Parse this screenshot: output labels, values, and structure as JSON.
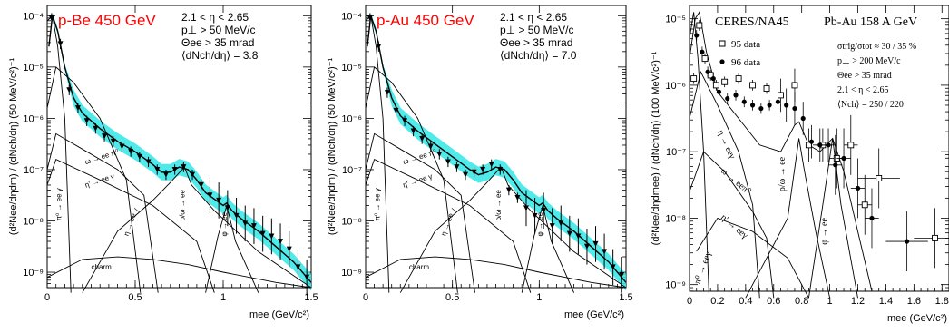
{
  "chart_data": [
    {
      "type": "line",
      "panel": "p-Be",
      "title": "p-Be 450 GeV",
      "info": [
        "2.1 < η < 2.65",
        "p⊥ > 50 MeV/c",
        "Θee > 35 mrad",
        "⟨dNch/dη⟩ = 3.8"
      ],
      "xlabel": "mee (GeV/c²)",
      "ylabel": "(d²Nee/dηdm) / (dNch/dη) (50 MeV/c²)⁻¹",
      "xlim": [
        0,
        1.5
      ],
      "ylim_log10": [
        -9.3,
        -3.8
      ],
      "xticks": [
        "0",
        "0.5",
        "1",
        "1.5"
      ],
      "yticks": [
        "10⁻⁴",
        "10⁻⁵",
        "10⁻⁶",
        "10⁻⁷",
        "10⁻⁸",
        "10⁻⁹"
      ],
      "annotations": [
        "ω → ee π⁰",
        "η' → ee γ",
        "π⁰ → ee γ",
        "η → ee γ",
        "ρ/ω → ee",
        "φ → ee",
        "charm"
      ],
      "data": {
        "x": [
          0.025,
          0.075,
          0.125,
          0.175,
          0.225,
          0.275,
          0.325,
          0.375,
          0.425,
          0.475,
          0.525,
          0.575,
          0.625,
          0.675,
          0.725,
          0.775,
          0.825,
          0.875,
          0.925,
          0.975,
          1.025,
          1.075,
          1.125,
          1.175,
          1.225,
          1.275,
          1.325,
          1.375,
          1.425,
          1.475
        ],
        "y_log10": [
          -4.05,
          -4.55,
          -5.45,
          -5.8,
          -6.05,
          -6.2,
          -6.35,
          -6.45,
          -6.55,
          -6.65,
          -6.75,
          -6.85,
          -7.0,
          -7.1,
          -7.0,
          -6.95,
          -7.1,
          -7.3,
          -7.5,
          -7.6,
          -7.75,
          -7.9,
          -8.05,
          -8.1,
          -8.25,
          -8.3,
          -8.4,
          -8.55,
          -8.9,
          -9.1
        ]
      },
      "sum_curve": {
        "x": [
          0.01,
          0.03,
          0.06,
          0.1,
          0.15,
          0.2,
          0.3,
          0.4,
          0.5,
          0.6,
          0.65,
          0.7,
          0.75,
          0.8,
          0.85,
          0.9,
          1.0,
          1.02,
          1.05,
          1.1,
          1.2,
          1.3,
          1.4,
          1.5
        ],
        "y_log10": [
          -4.6,
          -4.0,
          -4.3,
          -5.0,
          -5.6,
          -5.9,
          -6.2,
          -6.45,
          -6.65,
          -6.9,
          -7.05,
          -7.05,
          -6.95,
          -7.0,
          -7.2,
          -7.45,
          -7.7,
          -7.65,
          -7.8,
          -7.95,
          -8.2,
          -8.5,
          -8.8,
          -9.2
        ]
      }
    },
    {
      "type": "line",
      "panel": "p-Au",
      "title": "p-Au 450 GeV",
      "info": [
        "2.1 < η < 2.65",
        "p⊥ > 50 MeV/c",
        "Θee > 35 mrad",
        "⟨dNch/dη⟩ = 7.0"
      ],
      "xlabel": "mee (GeV/c²)",
      "ylabel": "(d²Nee/dηdm) / (dNch/dη) (50 MeV/c²)⁻¹",
      "xlim": [
        0,
        1.5
      ],
      "ylim_log10": [
        -9.3,
        -3.8
      ],
      "xticks": [
        "0",
        "0.5",
        "1",
        "1.5"
      ],
      "yticks": [
        "10⁻⁴",
        "10⁻⁵",
        "10⁻⁶",
        "10⁻⁷",
        "10⁻⁸",
        "10⁻⁹"
      ],
      "annotations": [
        "ω → ee π⁰",
        "η' → ee γ",
        "π⁰ → ee γ",
        "η → ee γ",
        "ρ/ω → ee",
        "φ → ee",
        "charm"
      ],
      "data": {
        "x": [
          0.025,
          0.075,
          0.125,
          0.175,
          0.225,
          0.275,
          0.325,
          0.375,
          0.425,
          0.475,
          0.525,
          0.575,
          0.625,
          0.675,
          0.725,
          0.775,
          0.825,
          0.875,
          0.925,
          0.975,
          1.025,
          1.075,
          1.125,
          1.175,
          1.225,
          1.275,
          1.325,
          1.375,
          1.425,
          1.475
        ],
        "y_log10": [
          -4.05,
          -4.6,
          -5.5,
          -5.85,
          -6.05,
          -6.25,
          -6.4,
          -6.55,
          -6.7,
          -6.85,
          -6.95,
          -7.1,
          -7.05,
          -7.0,
          -6.9,
          -7.0,
          -7.4,
          -7.55,
          -7.75,
          -7.9,
          -7.8,
          -8.1,
          -8.05,
          -8.25,
          -8.3,
          -8.5,
          -8.45,
          -8.6,
          -8.9,
          -9.05
        ]
      },
      "sum_curve": {
        "x": [
          0.01,
          0.03,
          0.06,
          0.1,
          0.15,
          0.2,
          0.3,
          0.4,
          0.5,
          0.6,
          0.65,
          0.7,
          0.75,
          0.8,
          0.85,
          0.9,
          1.0,
          1.02,
          1.05,
          1.1,
          1.2,
          1.3,
          1.4,
          1.5
        ],
        "y_log10": [
          -4.6,
          -4.0,
          -4.3,
          -5.0,
          -5.6,
          -5.95,
          -6.25,
          -6.5,
          -6.75,
          -7.0,
          -7.1,
          -7.05,
          -6.95,
          -7.0,
          -7.2,
          -7.45,
          -7.7,
          -7.65,
          -7.8,
          -7.95,
          -8.2,
          -8.5,
          -8.8,
          -9.2
        ]
      }
    },
    {
      "type": "scatter",
      "panel": "Pb-Au",
      "experiment": "CERES/NA45",
      "title": "Pb-Au 158 A GeV",
      "info": [
        "σtrig/σtot ≈ 30 / 35 %",
        "p⊥ > 200 MeV/c",
        "Θee > 35 mrad",
        "2.1 < η < 2.65",
        "⟨Nch⟩ = 250 / 220"
      ],
      "legend": [
        "95 data",
        "96 data"
      ],
      "xlabel": "mee (GeV/c²)",
      "ylabel": "(d²Nee/dηdmee) / (dNch/dη) (100 MeV/c²)⁻¹",
      "xlim": [
        0,
        1.85
      ],
      "ylim_log10": [
        -9.1,
        -4.8
      ],
      "xticks": [
        "0",
        "0.2",
        "0.4",
        "0.6",
        "0.8",
        "1",
        "1.2",
        "1.4",
        "1.6",
        "1.8"
      ],
      "yticks": [
        "10⁻⁵",
        "10⁻⁶",
        "10⁻⁷",
        "10⁻⁸",
        "10⁻⁹"
      ],
      "annotations": [
        "η → eeγ",
        "ω → eeπ⁰",
        "η' → eeγ",
        "π⁰ → eeγ",
        "ρ/ω → ee",
        "φ → ee"
      ],
      "series": [
        {
          "name": "95 data",
          "x": [
            0.03,
            0.07,
            0.11,
            0.15,
            0.19,
            0.25,
            0.35,
            0.45,
            0.55,
            0.65,
            0.75,
            0.85,
            0.95,
            1.05,
            1.15,
            1.25,
            1.35,
            1.75
          ],
          "y_log10": [
            -5.9,
            -5.1,
            -5.6,
            -5.85,
            -6.0,
            -5.95,
            -5.9,
            -6.0,
            -6.05,
            -6.15,
            -6.0,
            -6.9,
            -6.9,
            -7.1,
            -6.9,
            -7.8,
            -7.4,
            -8.3
          ]
        },
        {
          "name": "96 data",
          "x": [
            0.05,
            0.09,
            0.13,
            0.17,
            0.21,
            0.27,
            0.33,
            0.39,
            0.45,
            0.51,
            0.57,
            0.63,
            0.69,
            0.75,
            0.81,
            0.87,
            0.93,
            0.99,
            1.04,
            1.1,
            1.2,
            1.3,
            1.55
          ],
          "y_log10": [
            -5.25,
            -5.5,
            -5.8,
            -5.9,
            -6.1,
            -6.2,
            -6.15,
            -6.25,
            -6.3,
            -6.35,
            -6.3,
            -6.25,
            -6.3,
            -6.35,
            -6.5,
            -6.85,
            -6.9,
            -6.9,
            -7.2,
            -7.1,
            -7.55,
            -8.0,
            -8.35
          ]
        }
      ]
    }
  ]
}
